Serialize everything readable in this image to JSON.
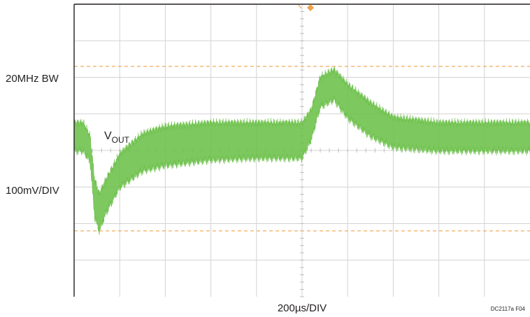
{
  "figure": {
    "left_labels": [
      "20MHz BW",
      "100mV/DIV"
    ],
    "trace_label_main": "V",
    "trace_label_sub": "OUT",
    "time_label": "200µs/DIV",
    "figure_id": "DC2117a F04"
  },
  "chart_data": {
    "type": "line",
    "title": "",
    "xlabel": "200µs/DIV",
    "ylabel": "100mV/DIV",
    "x_units": "divisions",
    "y_units": "divisions",
    "xlim": [
      0,
      10
    ],
    "ylim": [
      -4,
      4
    ],
    "grid": true,
    "grid_divisions": {
      "x": 10,
      "y": 8
    },
    "trace_color": "#6cc04a",
    "marker_color": "#f0a24a",
    "reference_levels": [
      2.3,
      -2.2
    ],
    "series": [
      {
        "color": "#6cc04a",
        "envelope_x": [
          0.0,
          0.2,
          0.35,
          0.45,
          0.55,
          0.7,
          1.0,
          1.5,
          2.0,
          3.0,
          4.0,
          5.0,
          5.2,
          5.4,
          5.7,
          6.0,
          6.5,
          7.0,
          8.0,
          9.0,
          10.0
        ],
        "envelope_upper": [
          0.75,
          0.75,
          0.4,
          -0.8,
          -1.2,
          -0.8,
          -0.1,
          0.45,
          0.65,
          0.75,
          0.75,
          0.75,
          1.1,
          2.0,
          2.2,
          1.8,
          1.3,
          0.9,
          0.75,
          0.75,
          0.75
        ],
        "envelope_lower": [
          0.0,
          0.0,
          -0.3,
          -1.8,
          -2.2,
          -1.7,
          -1.0,
          -0.55,
          -0.4,
          -0.25,
          -0.2,
          -0.2,
          0.3,
          1.2,
          1.4,
          0.9,
          0.4,
          0.1,
          0.0,
          0.0,
          0.0
        ]
      }
    ]
  }
}
